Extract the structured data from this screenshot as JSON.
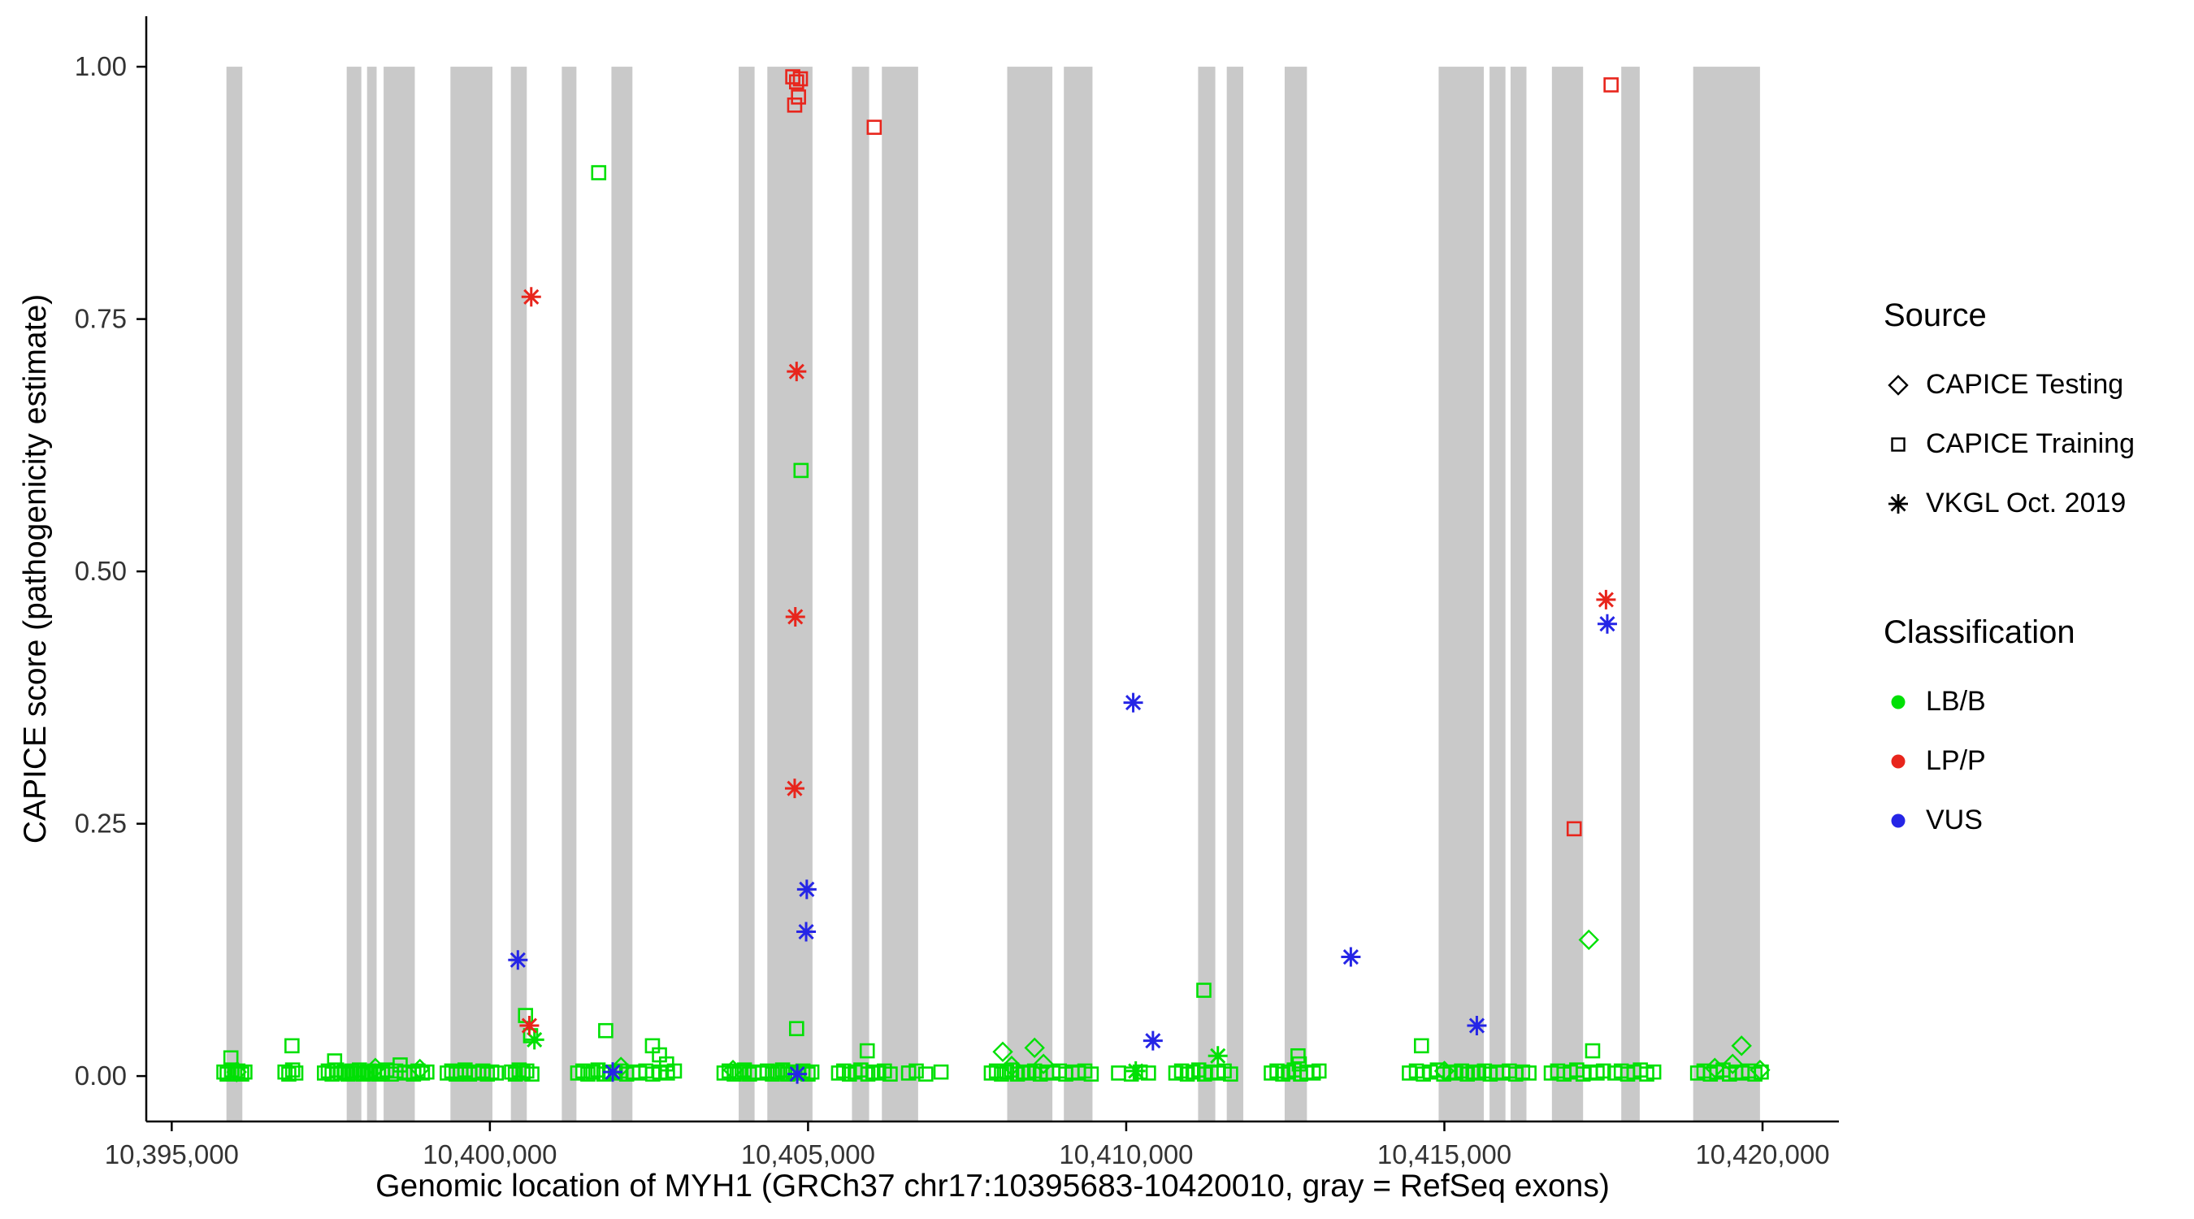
{
  "legend": {
    "source": {
      "title": "Source",
      "items": [
        {
          "label": "CAPICE Testing",
          "marker": "diamond"
        },
        {
          "label": "CAPICE Training",
          "marker": "square"
        },
        {
          "label": "VKGL Oct. 2019",
          "marker": "asterisk"
        }
      ]
    },
    "classification": {
      "title": "Classification",
      "items": [
        {
          "label": "LB/B",
          "color": "#00E005"
        },
        {
          "label": "LP/P",
          "color": "#E8251C"
        },
        {
          "label": "VUS",
          "color": "#2525E6"
        }
      ]
    }
  },
  "chart_data": {
    "type": "scatter",
    "title": "",
    "xlabel": "Genomic location of MYH1 (GRCh37 chr17:10395683-10420010, gray = RefSeq exons)",
    "ylabel": "CAPICE score (pathogenicity estimate)",
    "xlim": [
      10394600,
      10421200
    ],
    "ylim": [
      -0.045,
      1.05
    ],
    "grid": false,
    "legend_position": "right",
    "x_ticks": [
      {
        "value": 10395000,
        "label": "10,395,000"
      },
      {
        "value": 10400000,
        "label": "10,400,000"
      },
      {
        "value": 10405000,
        "label": "10,405,000"
      },
      {
        "value": 10410000,
        "label": "10,410,000"
      },
      {
        "value": 10415000,
        "label": "10,415,000"
      },
      {
        "value": 10420000,
        "label": "10,420,000"
      }
    ],
    "y_ticks": [
      {
        "value": 0.0,
        "label": "0.00"
      },
      {
        "value": 0.25,
        "label": "0.25"
      },
      {
        "value": 0.5,
        "label": "0.50"
      },
      {
        "value": 0.75,
        "label": "0.75"
      },
      {
        "value": 1.0,
        "label": "1.00"
      }
    ],
    "exon_color": "#C9C9C9",
    "colors": {
      "LB/B": "#00E005",
      "LP/P": "#E8251C",
      "VUS": "#2525E6"
    },
    "exons": [
      [
        10395860,
        10396110
      ],
      [
        10397750,
        10397980
      ],
      [
        10398070,
        10398220
      ],
      [
        10398330,
        10398820
      ],
      [
        10399380,
        10400040
      ],
      [
        10400330,
        10400580
      ],
      [
        10401130,
        10401360
      ],
      [
        10401910,
        10402240
      ],
      [
        10403910,
        10404160
      ],
      [
        10404360,
        10405070
      ],
      [
        10405690,
        10405960
      ],
      [
        10406160,
        10406730
      ],
      [
        10408130,
        10408840
      ],
      [
        10409020,
        10409470
      ],
      [
        10411130,
        10411400
      ],
      [
        10411580,
        10411840
      ],
      [
        10412490,
        10412840
      ],
      [
        10414910,
        10415620
      ],
      [
        10415710,
        10415960
      ],
      [
        10416040,
        10416290
      ],
      [
        10416690,
        10417180
      ],
      [
        10417780,
        10418070
      ],
      [
        10418910,
        10419960
      ]
    ],
    "point_format": "[genomic_position, capice_score, marker(s=CAPICE Training square, d=CAPICE Testing diamond, a=VKGL Oct. 2019 asterisk; default s), class(g=LB/B, r=LP/P, b=VUS; default g)]",
    "points": [
      [
        10395820,
        0.004
      ],
      [
        10395870,
        0.002
      ],
      [
        10395930,
        0.018
      ],
      [
        10395940,
        0.006
      ],
      [
        10395990,
        0.003
      ],
      [
        10396040,
        0.005
      ],
      [
        10396100,
        0.002
      ],
      [
        10396150,
        0.004
      ],
      [
        10396780,
        0.004
      ],
      [
        10396840,
        0.002
      ],
      [
        10396890,
        0.03
      ],
      [
        10396900,
        0.006
      ],
      [
        10396950,
        0.003
      ],
      [
        10397400,
        0.003
      ],
      [
        10397460,
        0.005
      ],
      [
        10397520,
        0.002
      ],
      [
        10397560,
        0.015
      ],
      [
        10397590,
        0.006
      ],
      [
        10397650,
        0.003
      ],
      [
        10397710,
        0.004
      ],
      [
        10397770,
        0.002
      ],
      [
        10397830,
        0.005
      ],
      [
        10397890,
        0.003
      ],
      [
        10397950,
        0.006
      ],
      [
        10398010,
        0.002
      ],
      [
        10398070,
        0.004
      ],
      [
        10398130,
        0.003
      ],
      [
        10398190,
        0.005
      ],
      [
        10398250,
        0.002
      ],
      [
        10398310,
        0.004
      ],
      [
        10398380,
        0.006
      ],
      [
        10398450,
        0.002
      ],
      [
        10398520,
        0.005
      ],
      [
        10398590,
        0.011
      ],
      [
        10398660,
        0.003
      ],
      [
        10398730,
        0.004
      ],
      [
        10398800,
        0.002
      ],
      [
        10398870,
        0.005
      ],
      [
        10398940,
        0.003
      ],
      [
        10399010,
        0.004
      ],
      [
        10399330,
        0.003
      ],
      [
        10399400,
        0.005
      ],
      [
        10399470,
        0.002
      ],
      [
        10399540,
        0.004
      ],
      [
        10399610,
        0.006
      ],
      [
        10399680,
        0.002
      ],
      [
        10399750,
        0.004
      ],
      [
        10399820,
        0.003
      ],
      [
        10399890,
        0.005
      ],
      [
        10399960,
        0.002
      ],
      [
        10400030,
        0.004
      ],
      [
        10400100,
        0.003
      ],
      [
        10400340,
        0.004
      ],
      [
        10400400,
        0.002
      ],
      [
        10400460,
        0.006
      ],
      [
        10400520,
        0.003
      ],
      [
        10400560,
        0.06
      ],
      [
        10400580,
        0.005
      ],
      [
        10400640,
        0.04
      ],
      [
        10400660,
        0.002
      ],
      [
        10401380,
        0.003
      ],
      [
        10401460,
        0.005
      ],
      [
        10401540,
        0.002
      ],
      [
        10401620,
        0.004
      ],
      [
        10401700,
        0.006
      ],
      [
        10401790,
        0.002
      ],
      [
        10401820,
        0.045
      ],
      [
        10401880,
        0.004
      ],
      [
        10401970,
        0.003
      ],
      [
        10402060,
        0.005
      ],
      [
        10402150,
        0.002
      ],
      [
        10402250,
        0.004
      ],
      [
        10402350,
        0.003
      ],
      [
        10402450,
        0.005
      ],
      [
        10402555,
        0.03
      ],
      [
        10402560,
        0.002
      ],
      [
        10402665,
        0.021
      ],
      [
        10402670,
        0.004
      ],
      [
        10402777,
        0.012
      ],
      [
        10402790,
        0.003
      ],
      [
        10402900,
        0.005
      ],
      [
        10403680,
        0.003
      ],
      [
        10403760,
        0.005
      ],
      [
        10403840,
        0.002
      ],
      [
        10403920,
        0.004
      ],
      [
        10404000,
        0.006
      ],
      [
        10404080,
        0.002
      ],
      [
        10404150,
        0.004
      ],
      [
        10404280,
        0.003
      ],
      [
        10404360,
        0.005
      ],
      [
        10404440,
        0.002
      ],
      [
        10404520,
        0.004
      ],
      [
        10404600,
        0.006
      ],
      [
        10404680,
        0.002
      ],
      [
        10404760,
        0.004
      ],
      [
        10404820,
        0.047
      ],
      [
        10404840,
        0.003
      ],
      [
        10404920,
        0.005
      ],
      [
        10405000,
        0.002
      ],
      [
        10405060,
        0.004
      ],
      [
        10405480,
        0.003
      ],
      [
        10405560,
        0.005
      ],
      [
        10405650,
        0.002
      ],
      [
        10405740,
        0.004
      ],
      [
        10405830,
        0.006
      ],
      [
        10405930,
        0.025
      ],
      [
        10405940,
        0.002
      ],
      [
        10406020,
        0.004
      ],
      [
        10406110,
        0.003
      ],
      [
        10406200,
        0.005
      ],
      [
        10406290,
        0.002
      ],
      [
        10406580,
        0.003
      ],
      [
        10406700,
        0.005
      ],
      [
        10406850,
        0.002
      ],
      [
        10407090,
        0.004
      ],
      [
        10407880,
        0.003
      ],
      [
        10407960,
        0.005
      ],
      [
        10408040,
        0.002
      ],
      [
        10408120,
        0.004
      ],
      [
        10408200,
        0.006
      ],
      [
        10408290,
        0.002
      ],
      [
        10408380,
        0.004
      ],
      [
        10408470,
        0.003
      ],
      [
        10408560,
        0.005
      ],
      [
        10408650,
        0.002
      ],
      [
        10408750,
        0.004
      ],
      [
        10408850,
        0.003
      ],
      [
        10408950,
        0.005
      ],
      [
        10409050,
        0.002
      ],
      [
        10409150,
        0.004
      ],
      [
        10409250,
        0.003
      ],
      [
        10409350,
        0.005
      ],
      [
        10409450,
        0.002
      ],
      [
        10409880,
        0.003
      ],
      [
        10410080,
        0.002
      ],
      [
        10410220,
        0.004
      ],
      [
        10410350,
        0.003
      ],
      [
        10410780,
        0.003
      ],
      [
        10410870,
        0.005
      ],
      [
        10410960,
        0.002
      ],
      [
        10411050,
        0.004
      ],
      [
        10411140,
        0.006
      ],
      [
        10411220,
        0.085
      ],
      [
        10411230,
        0.002
      ],
      [
        10411330,
        0.004
      ],
      [
        10411450,
        0.003
      ],
      [
        10411540,
        0.005
      ],
      [
        10411640,
        0.002
      ],
      [
        10412280,
        0.003
      ],
      [
        10412370,
        0.005
      ],
      [
        10412460,
        0.002
      ],
      [
        10412550,
        0.004
      ],
      [
        10412640,
        0.006
      ],
      [
        10412700,
        0.02
      ],
      [
        10412720,
        0.012
      ],
      [
        10412740,
        0.002
      ],
      [
        10412840,
        0.004
      ],
      [
        10412940,
        0.003
      ],
      [
        10413030,
        0.005
      ],
      [
        10414450,
        0.003
      ],
      [
        10414560,
        0.005
      ],
      [
        10414640,
        0.03
      ],
      [
        10414670,
        0.002
      ],
      [
        10414780,
        0.004
      ],
      [
        10414890,
        0.006
      ],
      [
        10414990,
        0.002
      ],
      [
        10415090,
        0.004
      ],
      [
        10415180,
        0.003
      ],
      [
        10415270,
        0.005
      ],
      [
        10415360,
        0.002
      ],
      [
        10415450,
        0.004
      ],
      [
        10415540,
        0.003
      ],
      [
        10415630,
        0.005
      ],
      [
        10415720,
        0.002
      ],
      [
        10415820,
        0.004
      ],
      [
        10415920,
        0.003
      ],
      [
        10416020,
        0.005
      ],
      [
        10416120,
        0.002
      ],
      [
        10416230,
        0.004
      ],
      [
        10416330,
        0.003
      ],
      [
        10416680,
        0.003
      ],
      [
        10416780,
        0.005
      ],
      [
        10416880,
        0.002
      ],
      [
        10416980,
        0.004
      ],
      [
        10417080,
        0.006
      ],
      [
        10417180,
        0.002
      ],
      [
        10417290,
        0.004
      ],
      [
        10417330,
        0.025
      ],
      [
        10417400,
        0.003
      ],
      [
        10417500,
        0.005
      ],
      [
        10417680,
        0.003
      ],
      [
        10417780,
        0.005
      ],
      [
        10417880,
        0.002
      ],
      [
        10417980,
        0.004
      ],
      [
        10418080,
        0.006
      ],
      [
        10418180,
        0.002
      ],
      [
        10418290,
        0.004
      ],
      [
        10418980,
        0.003
      ],
      [
        10419080,
        0.005
      ],
      [
        10419180,
        0.002
      ],
      [
        10419280,
        0.004
      ],
      [
        10419380,
        0.006
      ],
      [
        10419480,
        0.002
      ],
      [
        10419580,
        0.004
      ],
      [
        10419680,
        0.003
      ],
      [
        10419780,
        0.005
      ],
      [
        10419880,
        0.002
      ],
      [
        10419980,
        0.004
      ],
      [
        10396020,
        0.004,
        "d"
      ],
      [
        10398200,
        0.008,
        "d"
      ],
      [
        10398900,
        0.007,
        "d"
      ],
      [
        10402060,
        0.009,
        "d"
      ],
      [
        10403820,
        0.006,
        "d"
      ],
      [
        10408060,
        0.024,
        "d"
      ],
      [
        10408200,
        0.01,
        "d"
      ],
      [
        10408560,
        0.028,
        "d"
      ],
      [
        10408700,
        0.012,
        "d"
      ],
      [
        10415000,
        0.005,
        "d"
      ],
      [
        10417270,
        0.135,
        "d"
      ],
      [
        10419250,
        0.008,
        "d"
      ],
      [
        10419530,
        0.012,
        "d"
      ],
      [
        10419670,
        0.03,
        "d"
      ],
      [
        10419960,
        0.006,
        "d"
      ],
      [
        10410150,
        0.005,
        "a"
      ],
      [
        10411440,
        0.02,
        "a"
      ],
      [
        10400700,
        0.036,
        "a"
      ],
      [
        10401710,
        0.895
      ],
      [
        10404890,
        0.6
      ],
      [
        10404760,
        0.99,
        "s",
        "r"
      ],
      [
        10404820,
        0.985,
        "s",
        "r"
      ],
      [
        10404850,
        0.97,
        "s",
        "r"
      ],
      [
        10404790,
        0.962,
        "s",
        "r"
      ],
      [
        10404880,
        0.988,
        "s",
        "r"
      ],
      [
        10406040,
        0.94,
        "s",
        "r"
      ],
      [
        10417620,
        0.982,
        "s",
        "r"
      ],
      [
        10417040,
        0.245,
        "s",
        "r"
      ],
      [
        10400650,
        0.772,
        "a",
        "r"
      ],
      [
        10404820,
        0.698,
        "a",
        "r"
      ],
      [
        10404800,
        0.455,
        "a",
        "r"
      ],
      [
        10404790,
        0.285,
        "a",
        "r"
      ],
      [
        10400620,
        0.05,
        "a",
        "r"
      ],
      [
        10417540,
        0.472,
        "a",
        "r"
      ],
      [
        10400440,
        0.115,
        "a",
        "b"
      ],
      [
        10404980,
        0.185,
        "a",
        "b"
      ],
      [
        10404970,
        0.143,
        "a",
        "b"
      ],
      [
        10410110,
        0.37,
        "a",
        "b"
      ],
      [
        10410420,
        0.035,
        "a",
        "b"
      ],
      [
        10413530,
        0.118,
        "a",
        "b"
      ],
      [
        10415510,
        0.05,
        "a",
        "b"
      ],
      [
        10417560,
        0.448,
        "a",
        "b"
      ],
      [
        10404830,
        0.002,
        "a",
        "b"
      ],
      [
        10401930,
        0.004,
        "a",
        "b"
      ]
    ]
  }
}
